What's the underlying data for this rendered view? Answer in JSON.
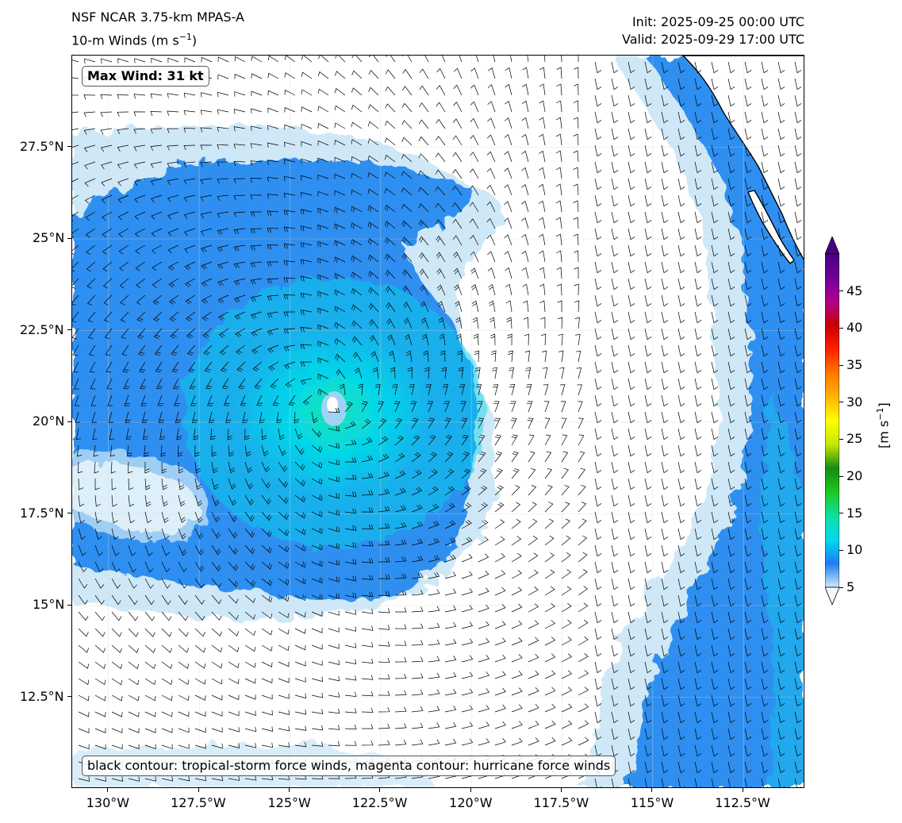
{
  "title": {
    "left_line1": "NSF NCAR 3.75-km MPAS-A",
    "left_line2_prefix": "10-m Winds (m s",
    "left_line2_sup": "−1",
    "left_line2_suffix": ")",
    "right_line1": "Init: 2025-09-25 00:00 UTC",
    "right_line2": "Valid: 2025-09-29 17:00 UTC"
  },
  "map": {
    "lon_range": [
      -131,
      -110.8
    ],
    "lat_range": [
      10.0,
      30.0
    ],
    "lon_ticks": [
      "130°W",
      "127.5°W",
      "125°W",
      "122.5°W",
      "120°W",
      "117.5°W",
      "115°W",
      "112.5°W"
    ],
    "lat_ticks": [
      "27.5°N",
      "25°N",
      "22.5°N",
      "20°N",
      "17.5°N",
      "15°N",
      "12.5°N"
    ],
    "storm_center": {
      "lon": -124.0,
      "lat": 20.5
    },
    "colors": {
      "ocean_weak": "#ffffff",
      "light_blue": "#cfe8f7",
      "mid_blue": "#9fd3f5",
      "blue": "#2f8ff0",
      "cyan": "#05d7e8",
      "green_cyan": "#12e6b0",
      "coastline": "#000000"
    }
  },
  "annotations": {
    "max_wind": "Max Wind: 31 kt",
    "contour_note": "black contour: tropical-storm force winds, magenta contour: hurricane force winds"
  },
  "colorbar": {
    "ticks": [
      "5",
      "10",
      "15",
      "20",
      "25",
      "30",
      "35",
      "40",
      "45"
    ],
    "unit_prefix": "[m s",
    "unit_sup": "−1",
    "unit_suffix": "]",
    "stops": [
      "#cfe8f7",
      "#1e7cf2",
      "#00d9f0",
      "#0fe0a0",
      "#1ec81e",
      "#148c14",
      "#c8e600",
      "#ffff00",
      "#ffb400",
      "#ff7800",
      "#ff1e00",
      "#c80000",
      "#b4008c",
      "#6e0096",
      "#4b0082"
    ]
  }
}
